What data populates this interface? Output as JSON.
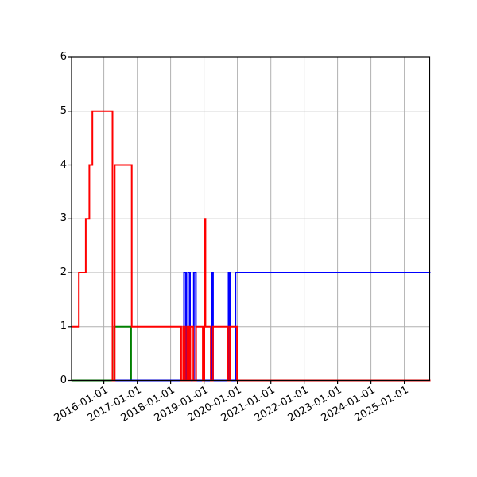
{
  "figure": {
    "background": "#ffffff",
    "title": ""
  },
  "colors": {
    "grid": "#b0b0b0",
    "spine": "#000000",
    "tick_text": "#000000",
    "red_series": "#ff0000",
    "blue_series": "#0000ff",
    "green_series": "#008000"
  },
  "chart_data": {
    "type": "line",
    "step": "post",
    "title": "",
    "xlabel": "",
    "ylabel": "",
    "grid": true,
    "legend": "none",
    "x_axis": {
      "range": [
        "2015-01-13",
        "2025-10-05"
      ],
      "tick_dates": [
        "2016-01-01",
        "2017-01-01",
        "2018-01-01",
        "2019-01-01",
        "2020-01-01",
        "2021-01-01",
        "2022-01-01",
        "2023-01-01",
        "2024-01-01",
        "2025-01-01"
      ],
      "tick_labels": [
        "2016-01-01",
        "2017-01-01",
        "2018-01-01",
        "2019-01-01",
        "2020-01-01",
        "2021-01-01",
        "2022-01-01",
        "2023-01-01",
        "2024-01-01",
        "2025-01-01"
      ],
      "label_rotation_deg": -30
    },
    "y_axis": {
      "range": [
        0,
        6
      ],
      "ticks": [
        0,
        1,
        2,
        3,
        4,
        5,
        6
      ],
      "tick_labels": [
        "0",
        "1",
        "2",
        "3",
        "4",
        "5",
        "6"
      ]
    },
    "series": [
      {
        "name": "green",
        "color": "#008000",
        "points": [
          [
            "2015-01-13",
            0
          ],
          [
            "2016-04-25",
            1
          ],
          [
            "2016-10-25",
            0
          ]
        ]
      },
      {
        "name": "blue",
        "color": "#0000ff",
        "points": [
          [
            "2016-04-29",
            0
          ],
          [
            "2018-05-28",
            2
          ],
          [
            "2018-06-18",
            0
          ],
          [
            "2018-07-10",
            2
          ],
          [
            "2018-08-01",
            0
          ],
          [
            "2018-09-12",
            2
          ],
          [
            "2018-10-04",
            0
          ],
          [
            "2019-03-27",
            2
          ],
          [
            "2019-04-09",
            0
          ],
          [
            "2019-09-27",
            2
          ],
          [
            "2019-10-12",
            0
          ],
          [
            "2019-12-11",
            2
          ]
        ]
      },
      {
        "name": "red",
        "color": "#ff0000",
        "points": [
          [
            "2015-01-13",
            1
          ],
          [
            "2015-04-03",
            2
          ],
          [
            "2015-06-18",
            3
          ],
          [
            "2015-07-27",
            4
          ],
          [
            "2015-08-29",
            5
          ],
          [
            "2016-04-05",
            0
          ],
          [
            "2016-04-29",
            4
          ],
          [
            "2016-11-01",
            1
          ],
          [
            "2018-04-26",
            0
          ],
          [
            "2018-05-18",
            1
          ],
          [
            "2018-06-08",
            0
          ],
          [
            "2018-06-30",
            1
          ],
          [
            "2018-07-22",
            0
          ],
          [
            "2018-08-04",
            1
          ],
          [
            "2018-09-06",
            0
          ],
          [
            "2018-10-06",
            1
          ],
          [
            "2018-12-19",
            0
          ],
          [
            "2019-01-04",
            3
          ],
          [
            "2019-01-17",
            1
          ],
          [
            "2019-03-16",
            0
          ],
          [
            "2019-04-08",
            1
          ],
          [
            "2019-09-21",
            0
          ],
          [
            "2019-10-11",
            1
          ],
          [
            "2019-12-28",
            0
          ]
        ]
      }
    ]
  }
}
